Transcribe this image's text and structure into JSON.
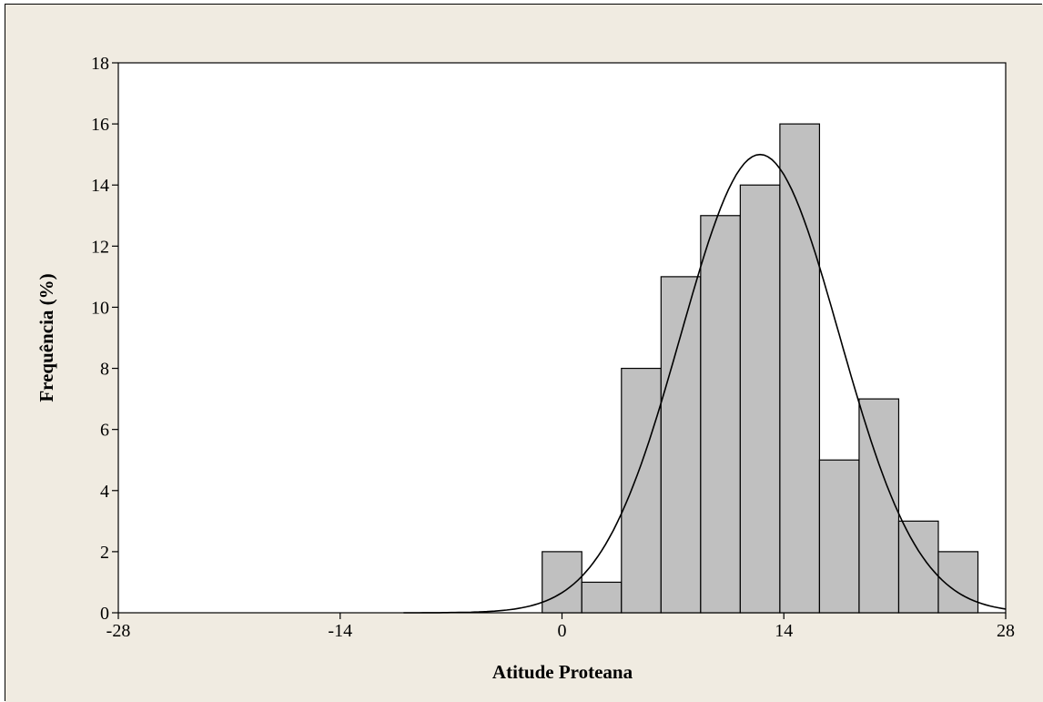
{
  "colors": {
    "background": "#f0ebe1",
    "plot_background": "#ffffff",
    "bar_fill": "#c0c0c0",
    "bar_stroke": "#000000",
    "curve": "#000000"
  },
  "chart_data": {
    "type": "bar",
    "subtype": "histogram_with_normal_fit",
    "title": "",
    "xlabel": "Atitude Proteana",
    "ylabel": "Frequência (%)",
    "xlim": [
      -28,
      28
    ],
    "ylim": [
      0,
      18
    ],
    "xticks": [
      -28,
      -14,
      0,
      14,
      28
    ],
    "yticks": [
      0,
      2,
      4,
      6,
      8,
      10,
      12,
      14,
      16,
      18
    ],
    "bin_width": 2.5,
    "bins": [
      {
        "x0": -1.25,
        "x1": 1.25,
        "value": 2
      },
      {
        "x0": 1.25,
        "x1": 3.75,
        "value": 1
      },
      {
        "x0": 3.75,
        "x1": 6.25,
        "value": 8
      },
      {
        "x0": 6.25,
        "x1": 8.75,
        "value": 11
      },
      {
        "x0": 8.75,
        "x1": 11.25,
        "value": 13
      },
      {
        "x0": 11.25,
        "x1": 13.75,
        "value": 14
      },
      {
        "x0": 13.75,
        "x1": 16.25,
        "value": 16
      },
      {
        "x0": 16.25,
        "x1": 18.75,
        "value": 5
      },
      {
        "x0": 18.75,
        "x1": 21.25,
        "value": 7
      },
      {
        "x0": 21.25,
        "x1": 23.75,
        "value": 3
      },
      {
        "x0": 23.75,
        "x1": 26.25,
        "value": 2
      }
    ],
    "normal_fit": {
      "mean": 12.5,
      "peak": 15.0,
      "sd": 5.0
    },
    "grid": false,
    "legend": "none"
  }
}
